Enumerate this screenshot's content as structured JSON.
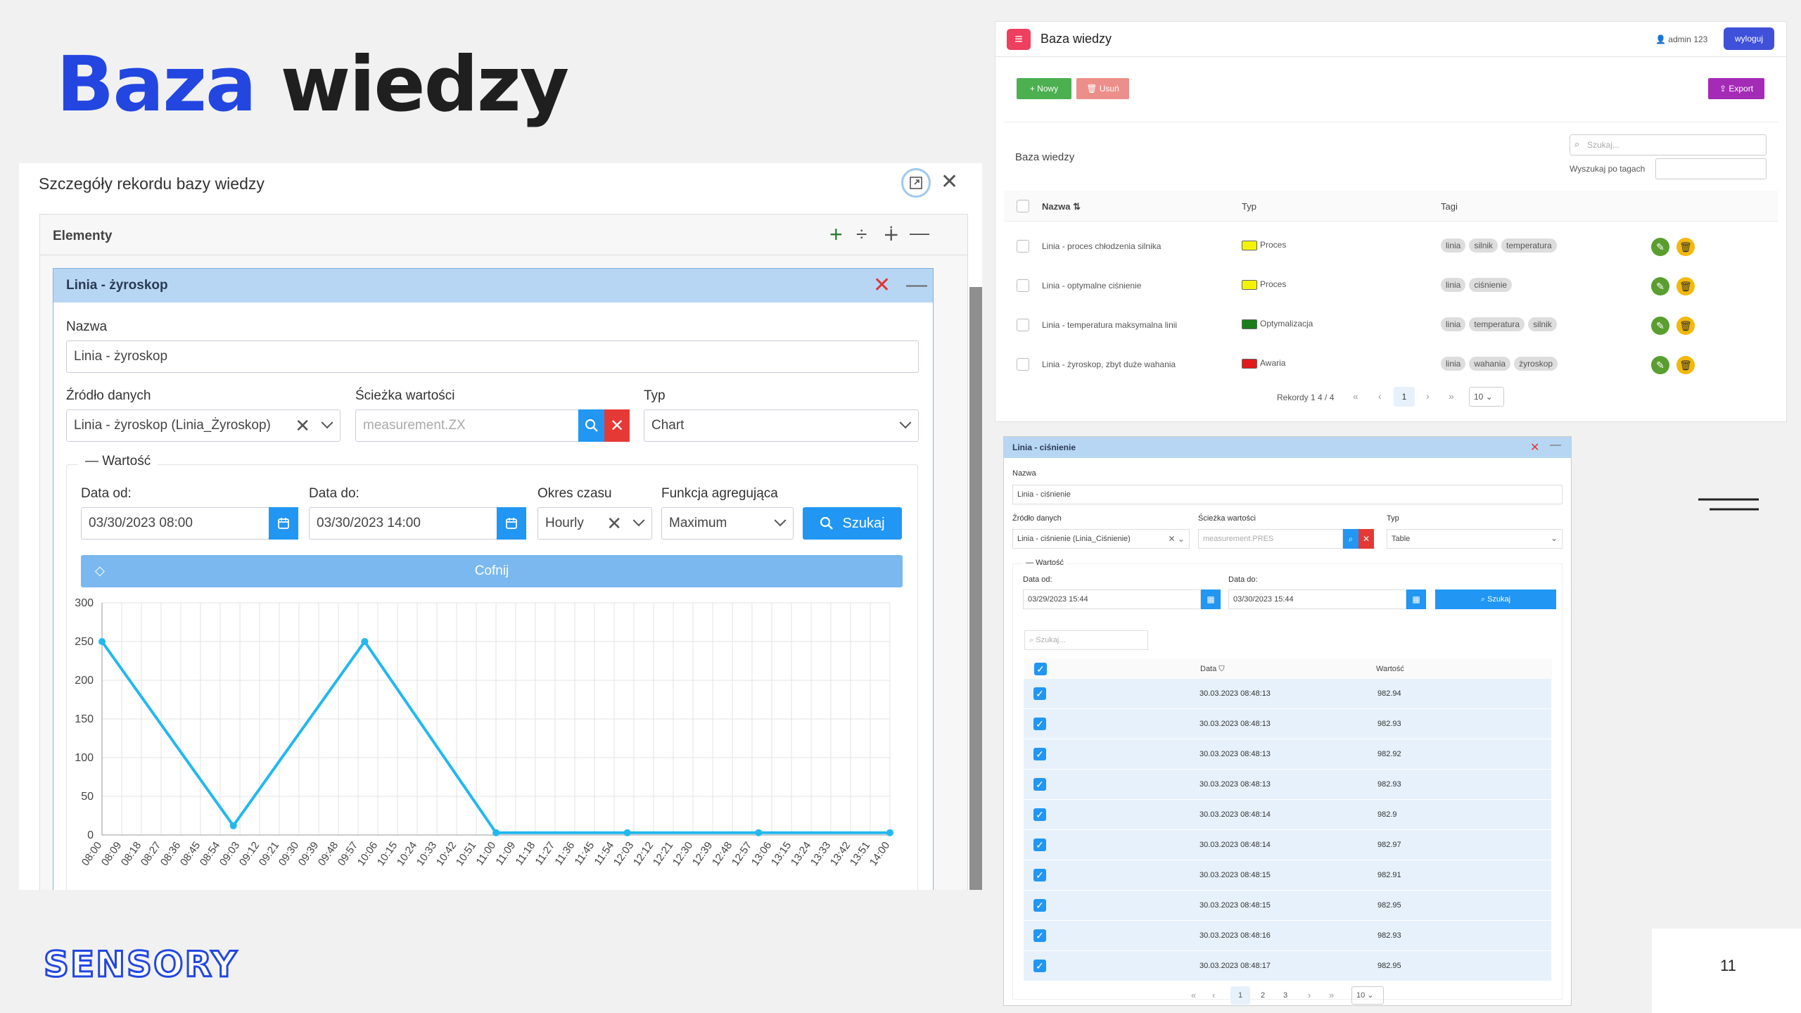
{
  "slide": {
    "title_part1": "Baza",
    "title_part2": "wiedzy",
    "page_number": "11",
    "logo_text": "SENSORY"
  },
  "dialog": {
    "title": "Szczegóły rekordu bazy wiedzy",
    "elements_title": "Elementy",
    "sub": {
      "title": "Linia - żyroskop",
      "name_label": "Nazwa",
      "name_value": "Linia - żyroskop",
      "source_label": "Źródło danych",
      "source_value": "Linia - żyroskop (Linia_Żyroskop)",
      "path_label": "Ścieżka wartości",
      "path_placeholder": "measurement.ZX",
      "type_label": "Typ",
      "type_value": "Chart",
      "value_legend": "Wartość",
      "date_from_label": "Data od:",
      "date_from_value": "03/30/2023 08:00",
      "date_to_label": "Data do:",
      "date_to_value": "03/30/2023 14:00",
      "period_label": "Okres czasu",
      "period_value": "Hourly",
      "agg_label": "Funkcja agregująca",
      "agg_value": "Maximum",
      "search_label": "Szukaj",
      "undo_label": "Cofnij"
    }
  },
  "chart_data": {
    "type": "line",
    "x": [
      "08:00",
      "08:09",
      "08:18",
      "08:27",
      "08:36",
      "08:45",
      "08:54",
      "09:03",
      "09:12",
      "09:21",
      "09:30",
      "09:39",
      "09:48",
      "09:57",
      "10:06",
      "10:15",
      "10:24",
      "10:33",
      "10:42",
      "10:51",
      "11:00",
      "11:09",
      "11:18",
      "11:27",
      "11:36",
      "11:45",
      "11:54",
      "12:03",
      "12:12",
      "12:21",
      "12:30",
      "12:39",
      "12:48",
      "12:57",
      "13:06",
      "13:15",
      "13:24",
      "13:33",
      "13:42",
      "13:51",
      "14:00"
    ],
    "points": [
      {
        "x": "08:00",
        "y": 250
      },
      {
        "x": "09:00",
        "y": 12
      },
      {
        "x": "10:00",
        "y": 250
      },
      {
        "x": "11:00",
        "y": 3
      },
      {
        "x": "12:00",
        "y": 3
      },
      {
        "x": "13:00",
        "y": 3
      },
      {
        "x": "14:00",
        "y": 3
      }
    ],
    "yticks": [
      0,
      50,
      100,
      150,
      200,
      250,
      300
    ],
    "ylim": [
      0,
      300
    ],
    "grid": true,
    "color": "#22b8ee"
  },
  "rt": {
    "app_title": "Baza wiedzy",
    "user": "admin 123",
    "logout": "wyloguj",
    "new_btn": "Nowy",
    "delete_btn": "Usuń",
    "export_btn": "Export",
    "list_title": "Baza wiedzy",
    "search_placeholder": "Szukaj...",
    "tag_search_label": "Wyszukaj po tagach",
    "col_name": "Nazwa",
    "col_type": "Typ",
    "col_tags": "Tagi",
    "rows": [
      {
        "name": "Linia - proces chłodzenia silnika",
        "type": "Proces",
        "color": "#f4f400",
        "tags": [
          "linia",
          "silnik",
          "temperatura"
        ]
      },
      {
        "name": "Linia - optymalne ciśnienie",
        "type": "Proces",
        "color": "#f4f400",
        "tags": [
          "linia",
          "ciśnienie"
        ]
      },
      {
        "name": "Linia - temperatura maksymalna linii",
        "type": "Optymalizacja",
        "color": "#1a7f1a",
        "tags": [
          "linia",
          "temperatura",
          "silnik"
        ]
      },
      {
        "name": "Linia - żyroskop, zbyt duże wahania",
        "type": "Awaria",
        "color": "#e01b1b",
        "tags": [
          "linia",
          "wahania",
          "żyroskop"
        ]
      }
    ],
    "records": "Rekordy 1 4 / 4",
    "page": "1",
    "page_size": "10"
  },
  "rb": {
    "title": "Linia - ciśnienie",
    "name_label": "Nazwa",
    "name_value": "Linia - ciśnienie",
    "source_label": "Źródło danych",
    "source_value": "Linia - ciśnienie (Linia_Ciśnienie)",
    "path_label": "Ścieżka wartości",
    "path_placeholder": "measurement.PRES",
    "type_label": "Typ",
    "type_value": "Table",
    "value_legend": "Wartość",
    "date_from_label": "Data od:",
    "date_from_value": "03/29/2023 15:44",
    "date_to_label": "Data do:",
    "date_to_value": "03/30/2023 15:44",
    "search_label": "Szukaj",
    "search_placeholder": "Szukaj...",
    "col_date": "Data",
    "col_value": "Wartość",
    "rows": [
      {
        "date": "30.03.2023 08:48:13",
        "value": "982.94"
      },
      {
        "date": "30.03.2023 08:48:13",
        "value": "982.93"
      },
      {
        "date": "30.03.2023 08:48:13",
        "value": "982.92"
      },
      {
        "date": "30.03.2023 08:48:13",
        "value": "982.93"
      },
      {
        "date": "30.03.2023 08:48:14",
        "value": "982.9"
      },
      {
        "date": "30.03.2023 08:48:14",
        "value": "982.97"
      },
      {
        "date": "30.03.2023 08:48:15",
        "value": "982.91"
      },
      {
        "date": "30.03.2023 08:48:15",
        "value": "982.95"
      },
      {
        "date": "30.03.2023 08:48:16",
        "value": "982.93"
      },
      {
        "date": "30.03.2023 08:48:17",
        "value": "982.95"
      }
    ],
    "pages": [
      "1",
      "2",
      "3"
    ],
    "page_size": "10"
  }
}
